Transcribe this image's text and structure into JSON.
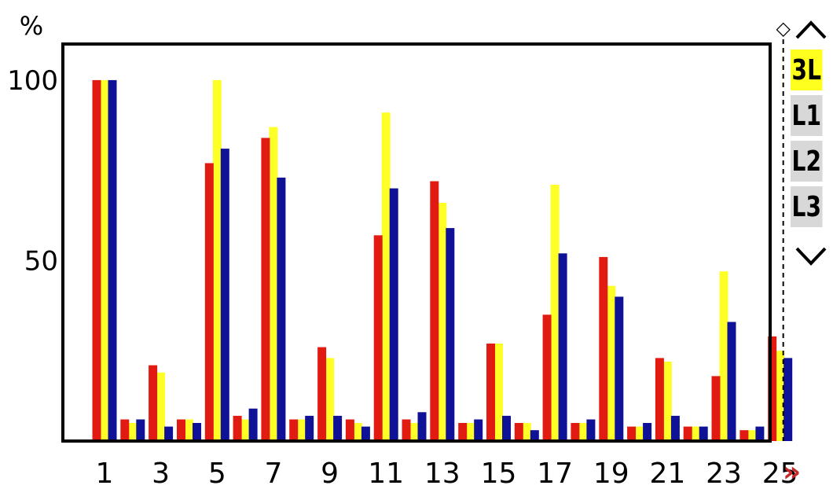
{
  "chart_data": {
    "type": "bar",
    "ylabel": "%",
    "ylim": [
      0,
      110
    ],
    "yticks": [
      50,
      100
    ],
    "categories": [
      "1",
      "2",
      "3",
      "4",
      "5",
      "6",
      "7",
      "8",
      "9",
      "10",
      "11",
      "12",
      "13",
      "14",
      "15",
      "16",
      "17",
      "18",
      "19",
      "20",
      "21",
      "22",
      "23",
      "24",
      "25"
    ],
    "xtick_labels": [
      "1",
      "",
      "3",
      "",
      "5",
      "",
      "7",
      "",
      "9",
      "",
      "11",
      "",
      "13",
      "",
      "15",
      "",
      "17",
      "",
      "19",
      "",
      "21",
      "",
      "23",
      "",
      "25"
    ],
    "series": [
      {
        "color": "#e11a12",
        "values": [
          100,
          6,
          21,
          6,
          77,
          7,
          84,
          6,
          26,
          6,
          57,
          6,
          72,
          5,
          27,
          5,
          35,
          5,
          51,
          4,
          23,
          4,
          18,
          3,
          29
        ]
      },
      {
        "color": "#ffff28",
        "values": [
          100,
          5,
          19,
          6,
          100,
          6,
          87,
          6,
          23,
          5,
          91,
          5,
          66,
          5,
          27,
          5,
          71,
          5,
          43,
          4,
          22,
          4,
          47,
          3,
          25
        ]
      },
      {
        "color": "#0f1296",
        "values": [
          100,
          6,
          4,
          5,
          81,
          9,
          73,
          7,
          7,
          4,
          70,
          8,
          59,
          6,
          7,
          3,
          52,
          6,
          40,
          5,
          7,
          4,
          33,
          4,
          23
        ]
      }
    ],
    "grid": false,
    "legend": "none",
    "cursor_category": "25",
    "cursor_marker": "◇",
    "more_indicator": "»"
  },
  "sidebar": {
    "up_icon": "chevron-up-icon",
    "down_icon": "chevron-down-icon",
    "items": [
      {
        "label": "3L",
        "selected": true
      },
      {
        "label": "L1",
        "selected": false
      },
      {
        "label": "L2",
        "selected": false
      },
      {
        "label": "L3",
        "selected": false
      }
    ]
  }
}
